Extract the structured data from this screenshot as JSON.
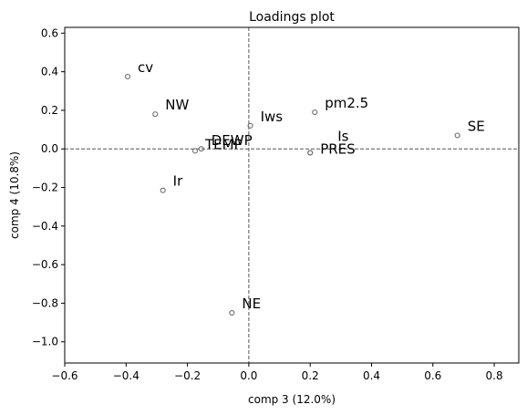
{
  "chart_data": {
    "type": "scatter",
    "title": "Loadings plot",
    "xlabel": "comp 3 (12.0%)",
    "ylabel": "comp 4 (10.8%)",
    "xlim": [
      -0.6,
      0.88
    ],
    "ylim": [
      -1.11,
      0.63
    ],
    "xticks": [
      -0.6,
      -0.4,
      -0.2,
      0.0,
      0.2,
      0.4,
      0.6,
      0.8
    ],
    "xtick_labels": [
      "−0.6",
      "−0.4",
      "−0.2",
      "0.0",
      "0.2",
      "0.4",
      "0.6",
      "0.8"
    ],
    "yticks": [
      0.6,
      0.4,
      0.2,
      0.0,
      -0.2,
      -0.4,
      -0.6,
      -0.8,
      -1.0
    ],
    "ytick_labels": [
      "0.6",
      "0.4",
      "0.2",
      "0.0",
      "−0.2",
      "−0.4",
      "−0.6",
      "−0.8",
      "−1.0"
    ],
    "reference_lines": {
      "x": 0.0,
      "y": 0.0,
      "style": "dashed"
    },
    "grid": false,
    "points": [
      {
        "label": "cv",
        "x": -0.395,
        "y": 0.375
      },
      {
        "label": "NW",
        "x": -0.305,
        "y": 0.18
      },
      {
        "label": "Iws",
        "x": 0.005,
        "y": 0.12
      },
      {
        "label": "pm2.5",
        "x": 0.215,
        "y": 0.19
      },
      {
        "label": "SE",
        "x": 0.68,
        "y": 0.07
      },
      {
        "label": "Is",
        "x": 0.2,
        "y": -0.02
      },
      {
        "label": "PRES",
        "x": 0.2,
        "y": -0.02
      },
      {
        "label": "DEWP",
        "x": -0.155,
        "y": 0.0
      },
      {
        "label": "TEMP",
        "x": -0.175,
        "y": -0.01
      },
      {
        "label": "Ir",
        "x": -0.28,
        "y": -0.215
      },
      {
        "label": "NE",
        "x": -0.055,
        "y": -0.85
      }
    ]
  }
}
